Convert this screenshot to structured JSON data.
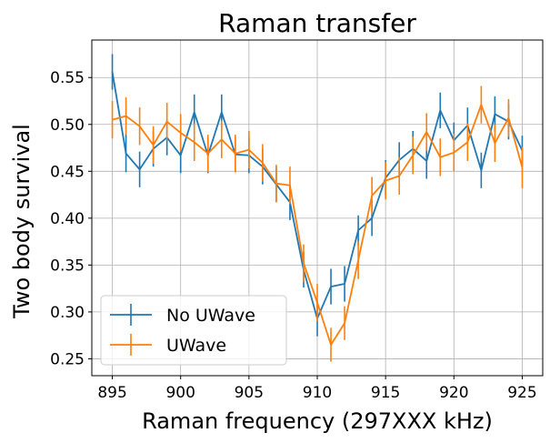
{
  "chart_data": {
    "type": "line",
    "title": "Raman transfer",
    "xlabel": "Raman frequency (297XXX kHz)",
    "ylabel": "Two body survival",
    "xlim": [
      893.5,
      926.5
    ],
    "ylim": [
      0.232,
      0.59
    ],
    "xticks": [
      895,
      900,
      905,
      910,
      915,
      920,
      925
    ],
    "yticks": [
      0.25,
      0.3,
      0.35,
      0.4,
      0.45,
      0.5,
      0.55
    ],
    "ytick_labels": [
      "0.25",
      "0.30",
      "0.35",
      "0.40",
      "0.45",
      "0.50",
      "0.55"
    ],
    "grid": true,
    "legend_position": "lower-left",
    "x": [
      895,
      896,
      897,
      898,
      899,
      900,
      901,
      902,
      903,
      904,
      905,
      906,
      907,
      908,
      909,
      910,
      911,
      912,
      913,
      914,
      915,
      916,
      917,
      918,
      919,
      920,
      921,
      922,
      923,
      924,
      925
    ],
    "series": [
      {
        "name": "No UWave",
        "color": "#1f77b4",
        "values": [
          0.556,
          0.469,
          0.452,
          0.474,
          0.486,
          0.467,
          0.513,
          0.467,
          0.513,
          0.468,
          0.467,
          0.455,
          0.436,
          0.417,
          0.345,
          0.293,
          0.327,
          0.33,
          0.387,
          0.4,
          0.443,
          0.462,
          0.474,
          0.461,
          0.515,
          0.483,
          0.499,
          0.451,
          0.511,
          0.503,
          0.472
        ],
        "errors": [
          0.019,
          0.02,
          0.019,
          0.019,
          0.019,
          0.019,
          0.019,
          0.019,
          0.019,
          0.019,
          0.019,
          0.019,
          0.019,
          0.019,
          0.019,
          0.019,
          0.019,
          0.019,
          0.016,
          0.019,
          0.019,
          0.019,
          0.019,
          0.019,
          0.019,
          0.019,
          0.019,
          0.019,
          0.019,
          0.019,
          0.016
        ]
      },
      {
        "name": "UWave",
        "color": "#ff7f0e",
        "values": [
          0.505,
          0.509,
          0.498,
          0.478,
          0.503,
          0.491,
          0.481,
          0.469,
          0.484,
          0.469,
          0.473,
          0.459,
          0.437,
          0.435,
          0.352,
          0.31,
          0.265,
          0.288,
          0.355,
          0.424,
          0.44,
          0.445,
          0.467,
          0.492,
          0.465,
          0.47,
          0.481,
          0.521,
          0.48,
          0.507,
          0.454
        ],
        "errors": [
          0.02,
          0.02,
          0.02,
          0.02,
          0.02,
          0.02,
          0.02,
          0.02,
          0.02,
          0.02,
          0.02,
          0.02,
          0.02,
          0.02,
          0.02,
          0.02,
          0.018,
          0.018,
          0.02,
          0.02,
          0.02,
          0.02,
          0.02,
          0.02,
          0.02,
          0.02,
          0.02,
          0.02,
          0.02,
          0.02,
          0.022
        ]
      }
    ]
  }
}
